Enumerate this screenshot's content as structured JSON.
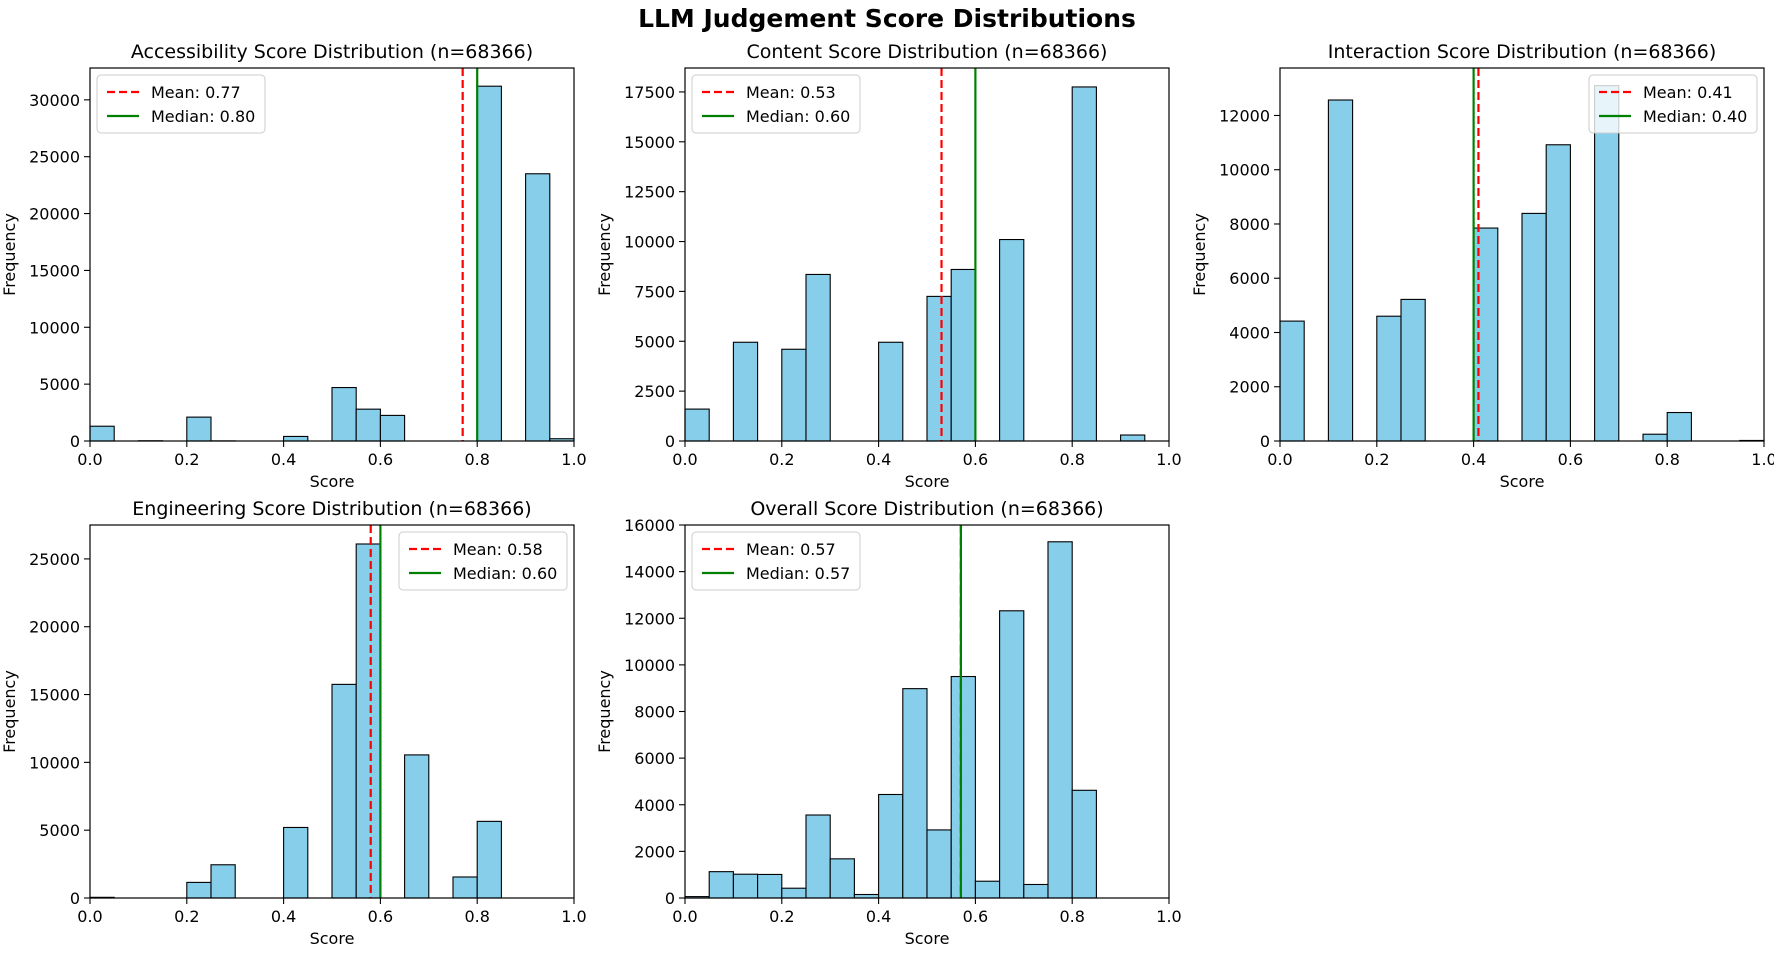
{
  "figure": {
    "title": "LLM Judgement Score Distributions"
  },
  "chart_data": [
    {
      "type": "bar",
      "title": "Accessibility Score Distribution (n=68366)",
      "xlabel": "Score",
      "ylabel": "Frequency",
      "xlim": [
        0,
        1
      ],
      "ylim": [
        0,
        32800
      ],
      "xticks": [
        "0.0",
        "0.2",
        "0.4",
        "0.6",
        "0.8",
        "1.0"
      ],
      "yticks": [
        0,
        5000,
        10000,
        15000,
        20000,
        25000,
        30000
      ],
      "legend_position": "top-left",
      "bin_width": 0.05,
      "bins": [
        0,
        0.05,
        0.1,
        0.15,
        0.2,
        0.25,
        0.3,
        0.35,
        0.4,
        0.45,
        0.5,
        0.55,
        0.6,
        0.65,
        0.7,
        0.75,
        0.8,
        0.85,
        0.9,
        0.95
      ],
      "values": [
        1300,
        0,
        20,
        0,
        2100,
        10,
        0,
        0,
        400,
        0,
        4700,
        2800,
        2250,
        0,
        0,
        0,
        31200,
        0,
        23500,
        200
      ],
      "mean": 0.77,
      "median": 0.8,
      "mean_label": "Mean: 0.77",
      "median_label": "Median: 0.80"
    },
    {
      "type": "bar",
      "title": "Content Score Distribution (n=68366)",
      "xlabel": "Score",
      "ylabel": "Frequency",
      "xlim": [
        0,
        1
      ],
      "ylim": [
        0,
        18700
      ],
      "xticks": [
        "0.0",
        "0.2",
        "0.4",
        "0.6",
        "0.8",
        "1.0"
      ],
      "yticks": [
        0,
        2500,
        5000,
        7500,
        10000,
        12500,
        15000,
        17500
      ],
      "legend_position": "top-left",
      "bin_width": 0.05,
      "bins": [
        0,
        0.05,
        0.1,
        0.15,
        0.2,
        0.25,
        0.3,
        0.35,
        0.4,
        0.45,
        0.5,
        0.55,
        0.6,
        0.65,
        0.7,
        0.75,
        0.8,
        0.85,
        0.9,
        0.95
      ],
      "values": [
        1600,
        0,
        4950,
        0,
        4600,
        8350,
        0,
        0,
        4950,
        0,
        7250,
        8600,
        0,
        10100,
        0,
        0,
        17750,
        0,
        300,
        0
      ],
      "mean": 0.53,
      "median": 0.6,
      "mean_label": "Mean: 0.53",
      "median_label": "Median: 0.60"
    },
    {
      "type": "bar",
      "title": "Interaction Score Distribution (n=68366)",
      "xlabel": "Score",
      "ylabel": "Frequency",
      "xlim": [
        0,
        1
      ],
      "ylim": [
        0,
        13750
      ],
      "xticks": [
        "0.0",
        "0.2",
        "0.4",
        "0.6",
        "0.8",
        "1.0"
      ],
      "yticks": [
        0,
        2000,
        4000,
        6000,
        8000,
        10000,
        12000
      ],
      "legend_position": "top-right",
      "bin_width": 0.05,
      "bins": [
        0,
        0.05,
        0.1,
        0.15,
        0.2,
        0.25,
        0.3,
        0.35,
        0.4,
        0.45,
        0.5,
        0.55,
        0.6,
        0.65,
        0.7,
        0.75,
        0.8,
        0.85,
        0.9,
        0.95
      ],
      "values": [
        4420,
        0,
        12570,
        0,
        4600,
        5220,
        0,
        0,
        7850,
        0,
        8390,
        10920,
        0,
        13100,
        0,
        250,
        1050,
        0,
        0,
        20
      ],
      "mean": 0.41,
      "median": 0.4,
      "mean_label": "Mean: 0.41",
      "median_label": "Median: 0.40"
    },
    {
      "type": "bar",
      "title": "Engineering Score Distribution (n=68366)",
      "xlabel": "Score",
      "ylabel": "Frequency",
      "xlim": [
        0,
        1
      ],
      "ylim": [
        0,
        27500
      ],
      "xticks": [
        "0.0",
        "0.2",
        "0.4",
        "0.6",
        "0.8",
        "1.0"
      ],
      "yticks": [
        0,
        5000,
        10000,
        15000,
        20000,
        25000
      ],
      "legend_position": "top-right",
      "bin_width": 0.05,
      "bins": [
        0,
        0.05,
        0.1,
        0.15,
        0.2,
        0.25,
        0.3,
        0.35,
        0.4,
        0.45,
        0.5,
        0.55,
        0.6,
        0.65,
        0.7,
        0.75,
        0.8,
        0.85,
        0.9,
        0.95
      ],
      "values": [
        50,
        0,
        0,
        0,
        1150,
        2450,
        0,
        0,
        5200,
        0,
        15750,
        26100,
        0,
        10550,
        0,
        1550,
        5650,
        0,
        0,
        0
      ],
      "mean": 0.58,
      "median": 0.6,
      "mean_label": "Mean: 0.58",
      "median_label": "Median: 0.60"
    },
    {
      "type": "bar",
      "title": "Overall Score Distribution (n=68366)",
      "xlabel": "Score",
      "ylabel": "Frequency",
      "xlim": [
        0,
        1
      ],
      "ylim": [
        0,
        16000
      ],
      "xticks": [
        "0.0",
        "0.2",
        "0.4",
        "0.6",
        "0.8",
        "1.0"
      ],
      "yticks": [
        0,
        2000,
        4000,
        6000,
        8000,
        10000,
        12000,
        14000,
        16000
      ],
      "legend_position": "top-left",
      "bin_width": 0.05,
      "bins": [
        0,
        0.05,
        0.1,
        0.15,
        0.2,
        0.25,
        0.3,
        0.35,
        0.4,
        0.45,
        0.5,
        0.55,
        0.6,
        0.65,
        0.7,
        0.75,
        0.8,
        0.85,
        0.9,
        0.95
      ],
      "values": [
        60,
        1130,
        1020,
        1010,
        420,
        3560,
        1680,
        150,
        4440,
        8980,
        2920,
        9500,
        720,
        12320,
        580,
        15280,
        4620,
        0,
        0,
        0
      ],
      "mean": 0.57,
      "median": 0.57,
      "mean_label": "Mean: 0.57",
      "median_label": "Median: 0.57"
    }
  ],
  "colors": {
    "bar_fill": "#87ceeb",
    "bar_edge": "#000000",
    "mean_line": "#ff0000",
    "median_line": "#008000"
  }
}
